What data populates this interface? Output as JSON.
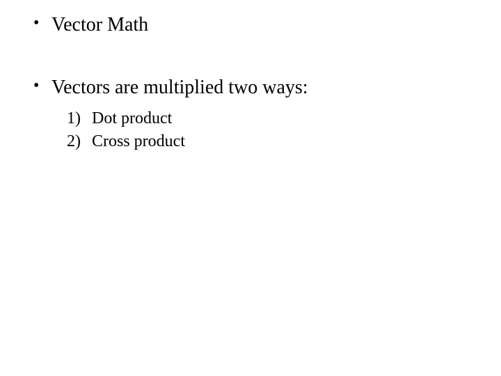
{
  "document": {
    "type": "slide",
    "background_color": "#ffffff",
    "text_color": "#000000",
    "font_family": "Times New Roman",
    "bullets": [
      {
        "text": "Vector Math",
        "fontsize": 28,
        "marker": "•"
      },
      {
        "text": "Vectors are multiplied two ways:",
        "fontsize": 28,
        "marker": "•"
      }
    ],
    "sublist": {
      "marker_style": "numeric-paren",
      "fontsize": 24,
      "items": [
        {
          "marker": "1)",
          "text": "Dot product"
        },
        {
          "marker": "2)",
          "text": "Cross product"
        }
      ]
    }
  }
}
